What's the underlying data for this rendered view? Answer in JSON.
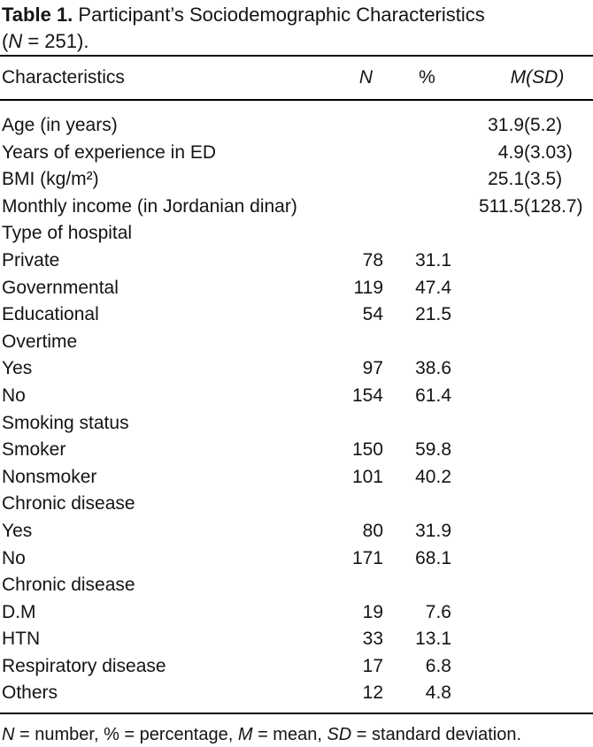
{
  "table_title": {
    "label": "Table 1.",
    "text": " Participant’s Sociodemographic Characteristics",
    "sample_open": "(",
    "sample_symbol": "N",
    "sample_rest": " = 251)."
  },
  "header": {
    "characteristics": "Characteristics",
    "n": "N",
    "pct": "%",
    "msd": "M(SD)"
  },
  "rows": [
    {
      "label": "Age (in years)",
      "n": "",
      "pct": "",
      "m": "31.9",
      "sd": "(5.2)"
    },
    {
      "label": "Years of experience in ED",
      "n": "",
      "pct": "",
      "m": "4.9",
      "sd": "(3.03)"
    },
    {
      "label": "BMI (kg/m²)",
      "n": "",
      "pct": "",
      "m": "25.1",
      "sd": "(3.5)"
    },
    {
      "label": "Monthly income (in Jordanian dinar)",
      "n": "",
      "pct": "",
      "m": "511.5",
      "sd": "(128.7)"
    },
    {
      "label": "Type of hospital",
      "n": "",
      "pct": "",
      "m": "",
      "sd": ""
    },
    {
      "label": "Private",
      "n": "78",
      "pct": "31.1",
      "m": "",
      "sd": ""
    },
    {
      "label": "Governmental",
      "n": "119",
      "pct": "47.4",
      "m": "",
      "sd": ""
    },
    {
      "label": "Educational",
      "n": "54",
      "pct": "21.5",
      "m": "",
      "sd": ""
    },
    {
      "label": "Overtime",
      "n": "",
      "pct": "",
      "m": "",
      "sd": ""
    },
    {
      "label": "Yes",
      "n": "97",
      "pct": "38.6",
      "m": "",
      "sd": ""
    },
    {
      "label": "No",
      "n": "154",
      "pct": "61.4",
      "m": "",
      "sd": ""
    },
    {
      "label": "Smoking status",
      "n": "",
      "pct": "",
      "m": "",
      "sd": ""
    },
    {
      "label": "Smoker",
      "n": "150",
      "pct": "59.8",
      "m": "",
      "sd": ""
    },
    {
      "label": "Nonsmoker",
      "n": "101",
      "pct": "40.2",
      "m": "",
      "sd": ""
    },
    {
      "label": "Chronic disease",
      "n": "",
      "pct": "",
      "m": "",
      "sd": ""
    },
    {
      "label": "Yes",
      "n": "80",
      "pct": "31.9",
      "m": "",
      "sd": ""
    },
    {
      "label": "No",
      "n": "171",
      "pct": "68.1",
      "m": "",
      "sd": ""
    },
    {
      "label": "Chronic disease",
      "n": "",
      "pct": "",
      "m": "",
      "sd": ""
    },
    {
      "label": "D.M",
      "n": "19",
      "pct": "7.6",
      "m": "",
      "sd": ""
    },
    {
      "label": "HTN",
      "n": "33",
      "pct": "13.1",
      "m": "",
      "sd": ""
    },
    {
      "label": "Respiratory disease",
      "n": "17",
      "pct": "6.8",
      "m": "",
      "sd": ""
    },
    {
      "label": "Others",
      "n": "12",
      "pct": "4.8",
      "m": "",
      "sd": ""
    }
  ],
  "footnote": {
    "n_sym": "N",
    "t1": " = number, % = percentage, ",
    "m_sym": "M",
    "t2": " = mean, ",
    "sd_sym": "SD",
    "t3": " = standard deviation."
  },
  "colors": {
    "text": "#141414",
    "rule": "#000000",
    "background": "#ffffff"
  }
}
